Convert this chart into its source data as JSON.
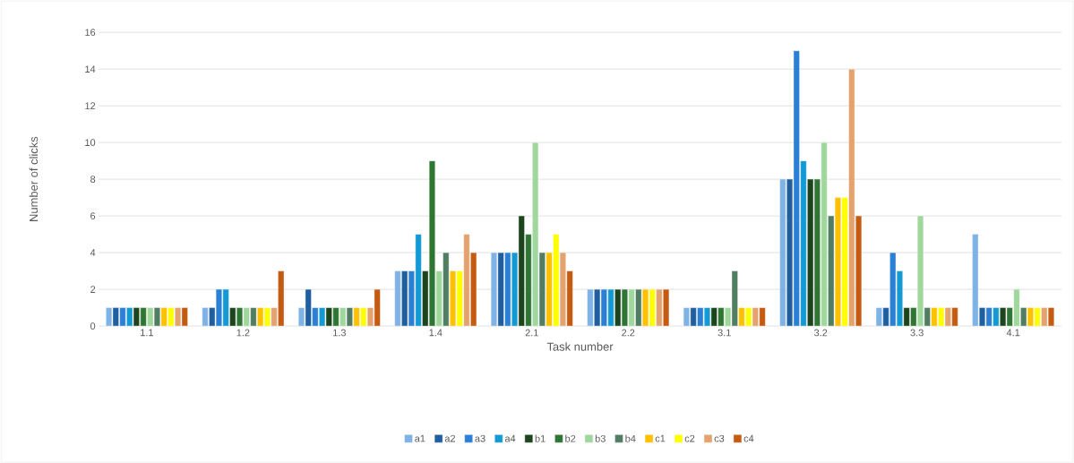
{
  "chart_data": {
    "type": "bar",
    "xlabel": "Task number",
    "ylabel": "Number of clicks",
    "categories": [
      "1.1",
      "1.2",
      "1.3",
      "1.4",
      "2.1",
      "2.2",
      "3.1",
      "3.2",
      "3.3",
      "4.1"
    ],
    "ylim": [
      0,
      16
    ],
    "yticks": [
      0,
      2,
      4,
      6,
      8,
      10,
      12,
      14,
      16
    ],
    "grid": "y",
    "legend": "bottom",
    "series": [
      {
        "name": "a1",
        "color": "#7fb2e5",
        "values": [
          1,
          1,
          1,
          3,
          4,
          2,
          1,
          8,
          1,
          5
        ]
      },
      {
        "name": "a2",
        "color": "#1f5fa0",
        "values": [
          1,
          1,
          2,
          3,
          4,
          2,
          1,
          8,
          1,
          1
        ]
      },
      {
        "name": "a3",
        "color": "#2b7fd4",
        "values": [
          1,
          2,
          1,
          3,
          4,
          2,
          1,
          15,
          4,
          1
        ]
      },
      {
        "name": "a4",
        "color": "#1399d3",
        "values": [
          1,
          2,
          1,
          5,
          4,
          2,
          1,
          9,
          3,
          1
        ]
      },
      {
        "name": "b1",
        "color": "#1c451e",
        "values": [
          1,
          1,
          1,
          3,
          6,
          2,
          1,
          8,
          1,
          1
        ]
      },
      {
        "name": "b2",
        "color": "#2f7533",
        "values": [
          1,
          1,
          1,
          9,
          5,
          2,
          1,
          8,
          1,
          1
        ]
      },
      {
        "name": "b3",
        "color": "#9fd79c",
        "values": [
          1,
          1,
          1,
          3,
          10,
          2,
          1,
          10,
          6,
          2
        ]
      },
      {
        "name": "b4",
        "color": "#517d62",
        "values": [
          1,
          1,
          1,
          4,
          4,
          2,
          3,
          6,
          1,
          1
        ]
      },
      {
        "name": "c1",
        "color": "#ffc000",
        "values": [
          1,
          1,
          1,
          3,
          4,
          2,
          1,
          7,
          1,
          1
        ]
      },
      {
        "name": "c2",
        "color": "#ffff00",
        "values": [
          1,
          1,
          1,
          3,
          5,
          2,
          1,
          7,
          1,
          1
        ]
      },
      {
        "name": "c3",
        "color": "#e3a26e",
        "values": [
          1,
          1,
          1,
          5,
          4,
          2,
          1,
          14,
          1,
          1
        ]
      },
      {
        "name": "c4",
        "color": "#c55a11",
        "values": [
          1,
          3,
          2,
          4,
          3,
          2,
          1,
          6,
          1,
          1
        ]
      }
    ]
  }
}
